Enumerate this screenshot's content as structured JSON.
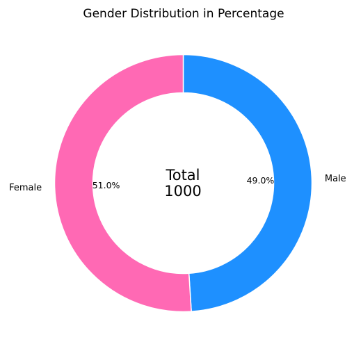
{
  "chart_data": {
    "type": "pie",
    "variant": "donut",
    "title": "Gender Distribution in Percentage",
    "center_text": [
      "Total",
      "1000"
    ],
    "slices": [
      {
        "label": "Male",
        "value": 49.0,
        "percent_label": "49.0%",
        "color": "#1E90FF"
      },
      {
        "label": "Female",
        "value": 51.0,
        "percent_label": "51.0%",
        "color": "#FF69B4"
      }
    ],
    "start_angle": "top, clockwise",
    "legend": "none"
  }
}
